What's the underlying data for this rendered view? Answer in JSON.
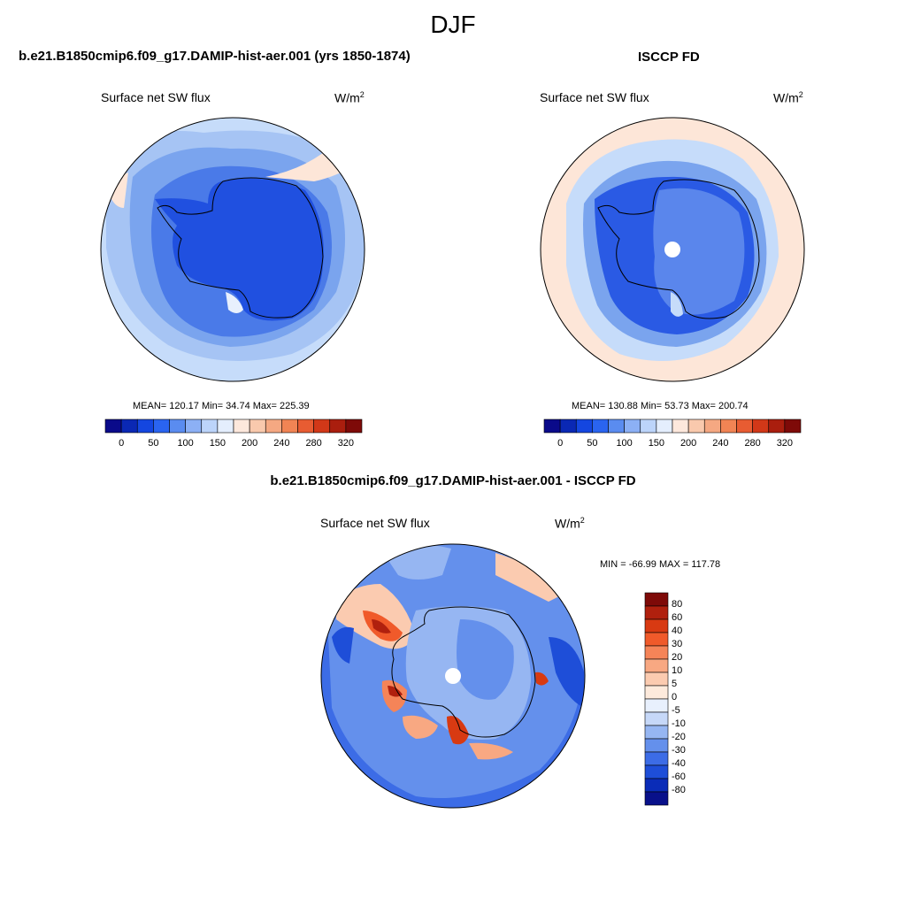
{
  "figure": {
    "season": "DJF",
    "left_panel": {
      "title": "b.e21.B1850cmip6.f09_g17.DAMIP-hist-aer.001 (yrs 1850-1874)",
      "variable": "Surface net SW flux",
      "units": "W/m",
      "units_sup": "2",
      "stats": "MEAN= 120.17  Min=  34.74  Max= 225.39"
    },
    "right_panel": {
      "title": "ISCCP FD",
      "variable": "Surface net SW flux",
      "units": "W/m",
      "units_sup": "2",
      "stats": "MEAN= 130.88  Min=  53.73  Max= 200.74"
    },
    "diff_panel": {
      "title": "b.e21.B1850cmip6.f09_g17.DAMIP-hist-aer.001 - ISCCP FD",
      "variable": "Surface net SW flux",
      "units": "W/m",
      "units_sup": "2",
      "stats": "MIN = -66.99 MAX = 117.78"
    },
    "colorbar_abs": {
      "colors": [
        "#0a0a8a",
        "#0a28b4",
        "#1446e0",
        "#2a64f0",
        "#5a8cf0",
        "#8cb0f5",
        "#bcd4fa",
        "#e4eefd",
        "#fde8dc",
        "#f9c9ad",
        "#f5a882",
        "#f18454",
        "#e85c32",
        "#d23818",
        "#aa1e0e",
        "#7e0a08"
      ],
      "labels": [
        "0",
        "50",
        "100",
        "150",
        "200",
        "240",
        "280",
        "320"
      ]
    },
    "colorbar_diff": {
      "colors": [
        "#7e0a08",
        "#b0200e",
        "#d83a12",
        "#f05a2a",
        "#f58458",
        "#f8a882",
        "#fbcbb0",
        "#fdeadc",
        "#e8f0fd",
        "#c6d8f8",
        "#96b6f2",
        "#6490ec",
        "#3c6ce6",
        "#1e4ed8",
        "#0a2cb8",
        "#08108a"
      ],
      "labels": [
        "80",
        "60",
        "40",
        "30",
        "20",
        "10",
        "5",
        "0",
        "-5",
        "-10",
        "-20",
        "-30",
        "-40",
        "-60",
        "-80"
      ]
    }
  }
}
